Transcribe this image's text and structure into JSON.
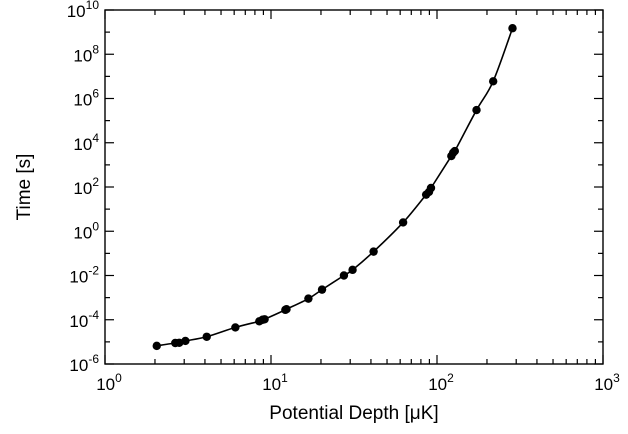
{
  "chart_data": {
    "type": "line",
    "title": "",
    "xlabel": "Potential Depth [μK]",
    "ylabel": "Time [s]",
    "x_scale": "log",
    "y_scale": "log",
    "xlim": [
      1,
      1000
    ],
    "ylim": [
      1e-06,
      10000000000.0
    ],
    "grid": false,
    "markers": "filled-circle",
    "line_color": "#000000",
    "x_ticks": [
      {
        "value": 1,
        "base": "10",
        "exp": "0"
      },
      {
        "value": 10,
        "base": "10",
        "exp": "1"
      },
      {
        "value": 100,
        "base": "10",
        "exp": "2"
      },
      {
        "value": 1000,
        "base": "10",
        "exp": "3"
      }
    ],
    "y_ticks": [
      {
        "value": 1e-06,
        "base": "10",
        "exp": "-6"
      },
      {
        "value": 0.0001,
        "base": "10",
        "exp": "-4"
      },
      {
        "value": 0.01,
        "base": "10",
        "exp": "-2"
      },
      {
        "value": 1,
        "base": "10",
        "exp": "0"
      },
      {
        "value": 100.0,
        "base": "10",
        "exp": "2"
      },
      {
        "value": 10000.0,
        "base": "10",
        "exp": "4"
      },
      {
        "value": 1000000.0,
        "base": "10",
        "exp": "6"
      },
      {
        "value": 100000000.0,
        "base": "10",
        "exp": "8"
      },
      {
        "value": 10000000000.0,
        "base": "10",
        "exp": "10"
      }
    ],
    "series": [
      {
        "x": [
          2.05,
          2.65,
          2.8,
          3.05,
          4.1,
          6.1,
          8.5,
          8.9,
          9.15,
          12.2,
          12.4,
          16.8,
          20.3,
          27.5,
          31.0,
          41.5,
          62.5,
          86.0,
          89.5,
          92.0,
          122.0,
          125.0,
          128.0,
          173.0,
          218.0,
          285.0
        ],
        "y": [
          6.6e-06,
          8.9e-06,
          9.1e-06,
          1.1e-05,
          1.7e-05,
          4.5e-05,
          8.5e-05,
          0.0001,
          0.000105,
          0.00028,
          0.0003,
          0.0009,
          0.0023,
          0.01,
          0.018,
          0.12,
          2.5,
          45,
          60,
          90,
          2500,
          3500,
          4200,
          300000.0,
          6000000.0,
          1500000000.0
        ]
      }
    ]
  }
}
